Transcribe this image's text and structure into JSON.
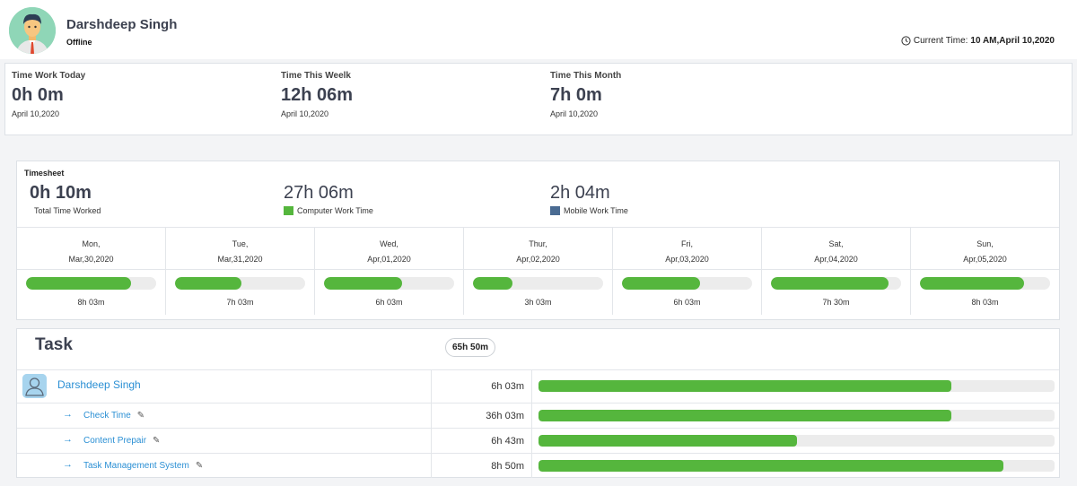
{
  "header": {
    "user_name": "Darshdeep Singh",
    "status": "Offline",
    "current_time_label": "Current Time:",
    "current_time_value": "10 AM,April 10,2020"
  },
  "stats": [
    {
      "label": "Time Work Today",
      "value": "0h 0m",
      "date": "April 10,2020"
    },
    {
      "label": "Time This Weelk",
      "value": "12h 06m",
      "date": "April 10,2020"
    },
    {
      "label": "Time This Month",
      "value": "7h 0m",
      "date": "April 10,2020"
    }
  ],
  "timesheet": {
    "title": "Timesheet",
    "total_value": "0h 10m",
    "total_label": "Total Time Worked",
    "computer_value": "27h 06m",
    "computer_label": "Computer Work Time",
    "mobile_value": "2h 04m",
    "mobile_label": "Mobile Work Time",
    "computer_color": "#55b63d",
    "mobile_color": "#4a6b92",
    "days": [
      {
        "day": "Mon,",
        "date": "Mar,30,2020",
        "hours": "8h 03m",
        "progress": 0.81
      },
      {
        "day": "Tue,",
        "date": "Mar,31,2020",
        "hours": "7h 03m",
        "progress": 0.51
      },
      {
        "day": "Wed,",
        "date": "Apr,01,2020",
        "hours": "6h 03m",
        "progress": 0.6
      },
      {
        "day": "Thur,",
        "date": "Apr,02,2020",
        "hours": "3h 03m",
        "progress": 0.3
      },
      {
        "day": "Fri,",
        "date": "Apr,03,2020",
        "hours": "6h 03m",
        "progress": 0.6
      },
      {
        "day": "Sat,",
        "date": "Apr,04,2020",
        "hours": "7h 30m",
        "progress": 0.9
      },
      {
        "day": "Sun,",
        "date": "Apr,05,2020",
        "hours": "8h 03m",
        "progress": 0.8
      }
    ]
  },
  "task": {
    "title": "Task",
    "total": "65h 50m",
    "person": {
      "name": "Darshdeep Singh",
      "hours": "6h 03m",
      "progress": 0.8
    },
    "items": [
      {
        "name": "Check Time",
        "hours": "36h 03m",
        "progress": 0.8
      },
      {
        "name": "Content Prepair",
        "hours": "6h 43m",
        "progress": 0.5
      },
      {
        "name": "Task Management System",
        "hours": "8h 50m",
        "progress": 0.9
      }
    ]
  },
  "colors": {
    "accent": "#55b63d",
    "link": "#2a8fd4"
  }
}
